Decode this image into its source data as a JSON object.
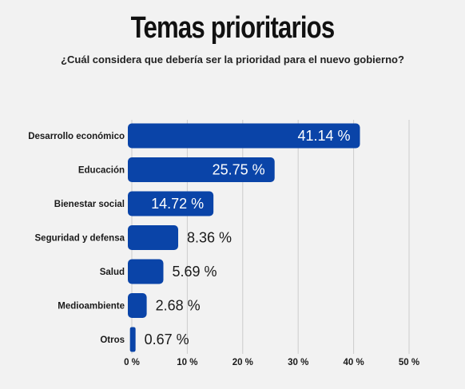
{
  "chart_data": {
    "type": "bar",
    "orientation": "horizontal",
    "title": "Temas prioritarios",
    "subtitle": "¿Cuál considera que debería ser la prioridad para el nuevo gobierno?",
    "categories": [
      "Desarrollo económico",
      "Educación",
      "Bienestar social",
      "Seguridad  y defensa",
      "Salud",
      "Medioambiente",
      "Otros"
    ],
    "values": [
      41.14,
      25.75,
      14.72,
      8.36,
      5.69,
      2.68,
      0.67
    ],
    "value_labels": [
      "41.14 %",
      "25.75 %",
      "14.72 %",
      "8.36 %",
      "5.69 %",
      "2.68 %",
      "0.67 %"
    ],
    "xlim": [
      0,
      50
    ],
    "x_ticks": [
      0,
      10,
      20,
      30,
      40,
      50
    ],
    "x_tick_labels": [
      "0 %",
      "10 %",
      "20 %",
      "30 %",
      "40 %",
      "50 %"
    ],
    "grid": true,
    "bar_color": "#0a44a8",
    "grid_color": "#cccccc"
  }
}
